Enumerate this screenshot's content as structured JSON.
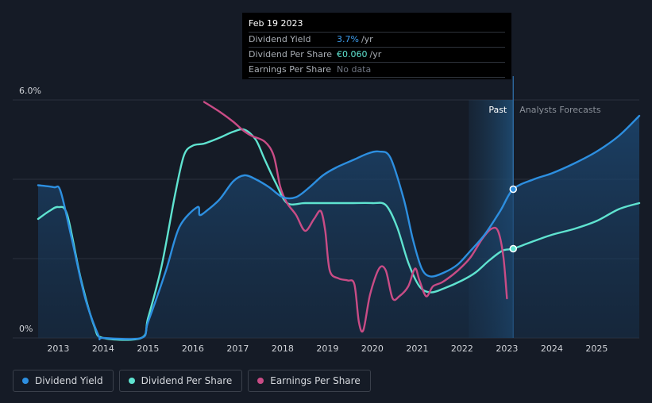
{
  "tooltip": {
    "date": "Feb 19 2023",
    "rows": [
      {
        "label": "Dividend Yield",
        "value": "3.7%",
        "unit": "/yr"
      },
      {
        "label": "Dividend Per Share",
        "value": "€0.060",
        "unit": "/yr"
      },
      {
        "label": "Earnings Per Share",
        "value": "No data"
      }
    ]
  },
  "legend": [
    {
      "label": "Dividend Yield",
      "color": "#2d8fe0"
    },
    {
      "label": "Dividend Per Share",
      "color": "#5fe3d0"
    },
    {
      "label": "Earnings Per Share",
      "color": "#c94c86"
    }
  ],
  "chart_data": {
    "type": "line",
    "title": "",
    "xlabel": "",
    "ylabel": "",
    "x_ticks": [
      "2013",
      "2014",
      "2015",
      "2016",
      "2017",
      "2018",
      "2019",
      "2020",
      "2021",
      "2022",
      "2023",
      "2024",
      "2025"
    ],
    "xlim": [
      2012.55,
      2025.95
    ],
    "y_ticks": [
      "6.0%",
      "0%"
    ],
    "ylim": [
      0,
      6.0
    ],
    "past_label": "Past",
    "forecast_label": "Analysts Forecasts",
    "past_band": [
      2022.15,
      2023.14
    ],
    "current_x": 2023.14,
    "colors": {
      "yield": "#2d8fe0",
      "dps": "#5fe3d0",
      "eps": "#c94c86"
    },
    "series": [
      {
        "name": "Dividend Yield",
        "unit": "%",
        "points": [
          [
            2012.55,
            3.85
          ],
          [
            2012.9,
            3.8
          ],
          [
            2013.05,
            3.7
          ],
          [
            2013.3,
            2.5
          ],
          [
            2013.6,
            1.0
          ],
          [
            2013.9,
            0.05
          ],
          [
            2014,
            0
          ],
          [
            2014.85,
            0
          ],
          [
            2015.0,
            0.4
          ],
          [
            2015.4,
            1.7
          ],
          [
            2015.7,
            2.8
          ],
          [
            2016.1,
            3.3
          ],
          [
            2016.15,
            3.1
          ],
          [
            2016.3,
            3.2
          ],
          [
            2016.6,
            3.5
          ],
          [
            2016.9,
            3.95
          ],
          [
            2017.15,
            4.1
          ],
          [
            2017.4,
            4.0
          ],
          [
            2017.7,
            3.8
          ],
          [
            2018.0,
            3.55
          ],
          [
            2018.3,
            3.55
          ],
          [
            2018.6,
            3.8
          ],
          [
            2018.9,
            4.1
          ],
          [
            2019.2,
            4.3
          ],
          [
            2019.6,
            4.5
          ],
          [
            2019.9,
            4.65
          ],
          [
            2020.15,
            4.7
          ],
          [
            2020.4,
            4.55
          ],
          [
            2020.7,
            3.5
          ],
          [
            2020.9,
            2.5
          ],
          [
            2021.1,
            1.75
          ],
          [
            2021.3,
            1.55
          ],
          [
            2021.6,
            1.65
          ],
          [
            2021.9,
            1.85
          ],
          [
            2022.15,
            2.15
          ],
          [
            2022.5,
            2.6
          ],
          [
            2022.85,
            3.2
          ],
          [
            2023.14,
            3.75
          ],
          [
            2023.6,
            4.0
          ],
          [
            2024.0,
            4.15
          ],
          [
            2024.5,
            4.4
          ],
          [
            2025.0,
            4.7
          ],
          [
            2025.5,
            5.1
          ],
          [
            2025.95,
            5.6
          ]
        ]
      },
      {
        "name": "Dividend Per Share",
        "unit": "",
        "points": [
          [
            2012.55,
            3.0
          ],
          [
            2012.8,
            3.2
          ],
          [
            2013.0,
            3.3
          ],
          [
            2013.2,
            3.1
          ],
          [
            2013.5,
            1.5
          ],
          [
            2013.8,
            0.3
          ],
          [
            2014,
            0
          ],
          [
            2014.85,
            0
          ],
          [
            2015.0,
            0.5
          ],
          [
            2015.3,
            1.8
          ],
          [
            2015.6,
            3.6
          ],
          [
            2015.8,
            4.6
          ],
          [
            2016.0,
            4.85
          ],
          [
            2016.25,
            4.9
          ],
          [
            2016.6,
            5.05
          ],
          [
            2016.9,
            5.2
          ],
          [
            2017.15,
            5.25
          ],
          [
            2017.4,
            5.0
          ],
          [
            2017.6,
            4.5
          ],
          [
            2017.85,
            3.9
          ],
          [
            2018.1,
            3.4
          ],
          [
            2018.5,
            3.4
          ],
          [
            2019.0,
            3.4
          ],
          [
            2019.5,
            3.4
          ],
          [
            2020.0,
            3.4
          ],
          [
            2020.3,
            3.35
          ],
          [
            2020.55,
            2.8
          ],
          [
            2020.8,
            1.9
          ],
          [
            2021.05,
            1.3
          ],
          [
            2021.3,
            1.15
          ],
          [
            2021.6,
            1.25
          ],
          [
            2022.0,
            1.45
          ],
          [
            2022.3,
            1.65
          ],
          [
            2022.6,
            1.95
          ],
          [
            2022.9,
            2.2
          ],
          [
            2023.14,
            2.25
          ],
          [
            2023.5,
            2.4
          ],
          [
            2024.0,
            2.6
          ],
          [
            2024.5,
            2.75
          ],
          [
            2025.0,
            2.95
          ],
          [
            2025.5,
            3.25
          ],
          [
            2025.95,
            3.4
          ]
        ]
      },
      {
        "name": "Earnings Per Share",
        "unit": "",
        "points": [
          [
            2016.25,
            5.95
          ],
          [
            2016.6,
            5.7
          ],
          [
            2016.9,
            5.45
          ],
          [
            2017.1,
            5.25
          ],
          [
            2017.3,
            5.1
          ],
          [
            2017.6,
            4.95
          ],
          [
            2017.8,
            4.6
          ],
          [
            2017.95,
            3.8
          ],
          [
            2018.1,
            3.4
          ],
          [
            2018.3,
            3.1
          ],
          [
            2018.5,
            2.7
          ],
          [
            2018.7,
            3.0
          ],
          [
            2018.85,
            3.2
          ],
          [
            2018.95,
            2.7
          ],
          [
            2019.05,
            1.7
          ],
          [
            2019.25,
            1.5
          ],
          [
            2019.45,
            1.45
          ],
          [
            2019.6,
            1.35
          ],
          [
            2019.7,
            0.4
          ],
          [
            2019.8,
            0.2
          ],
          [
            2019.95,
            1.1
          ],
          [
            2020.15,
            1.75
          ],
          [
            2020.3,
            1.7
          ],
          [
            2020.45,
            1.0
          ],
          [
            2020.6,
            1.05
          ],
          [
            2020.8,
            1.3
          ],
          [
            2020.95,
            1.75
          ],
          [
            2021.05,
            1.45
          ],
          [
            2021.2,
            1.05
          ],
          [
            2021.35,
            1.3
          ],
          [
            2021.55,
            1.4
          ],
          [
            2021.8,
            1.6
          ],
          [
            2022.0,
            1.8
          ],
          [
            2022.2,
            2.05
          ],
          [
            2022.45,
            2.5
          ],
          [
            2022.65,
            2.75
          ],
          [
            2022.8,
            2.7
          ],
          [
            2022.92,
            2.05
          ],
          [
            2023.0,
            1.0
          ]
        ]
      }
    ],
    "markers": [
      {
        "series": "Dividend Yield",
        "x": 2023.14,
        "y": 3.75
      },
      {
        "series": "Dividend Per Share",
        "x": 2023.14,
        "y": 2.25
      }
    ]
  }
}
